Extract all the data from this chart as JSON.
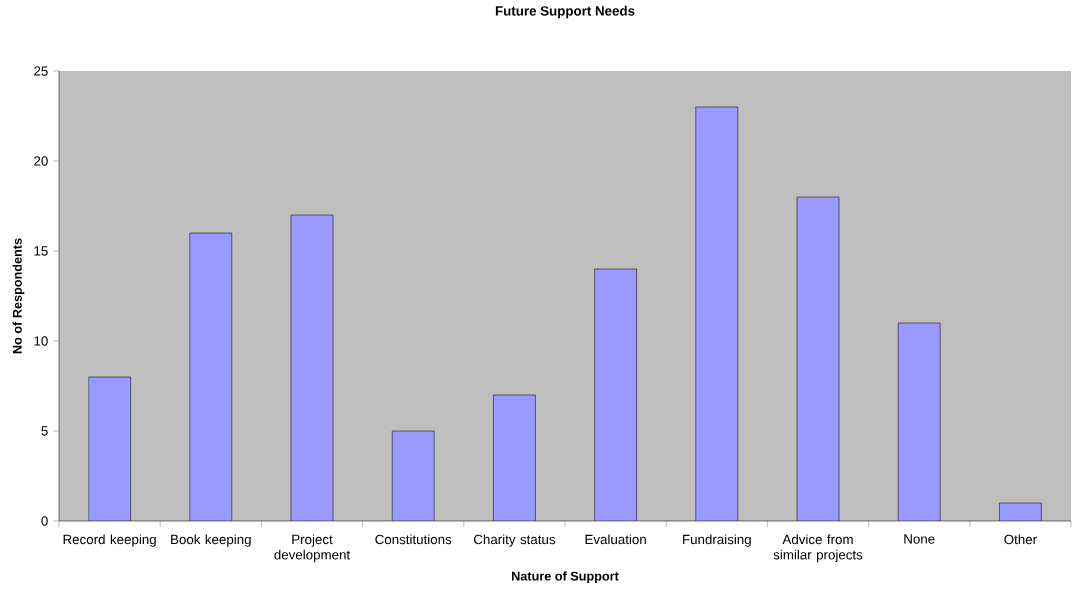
{
  "chart_data": {
    "type": "bar",
    "title": "Future Support Needs",
    "xlabel": "Nature of Support",
    "ylabel": "No of Respondents",
    "categories": [
      "Record keeping",
      "Book keeping",
      "Project development",
      "Constitutions",
      "Charity status",
      "Evaluation",
      "Fundraising",
      "Advice from similar projects",
      "None",
      "Other"
    ],
    "values": [
      8,
      16,
      17,
      5,
      7,
      14,
      23,
      18,
      11,
      1
    ],
    "color": "#9999ff",
    "ylim": [
      0,
      25
    ],
    "yticks": [
      0,
      5,
      10,
      15,
      20,
      25
    ]
  }
}
